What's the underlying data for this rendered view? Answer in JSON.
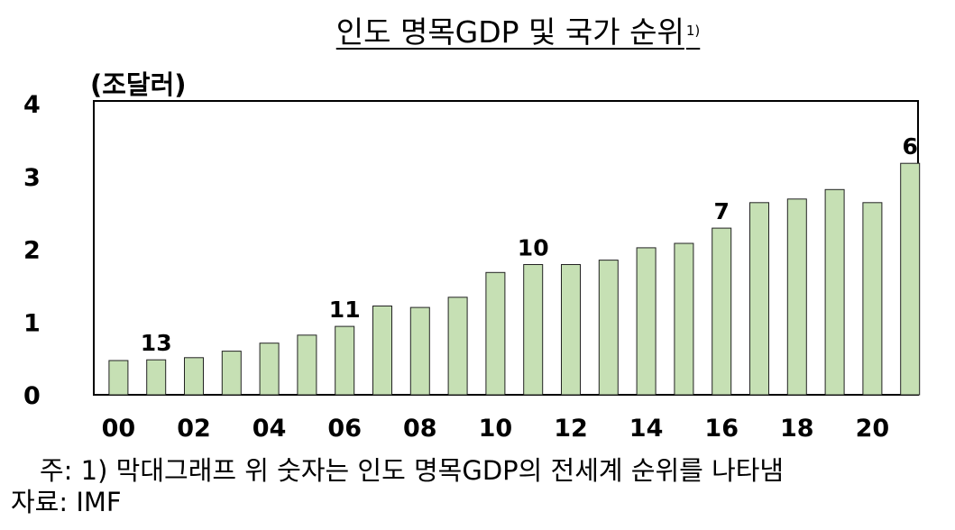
{
  "title": "인도 명목GDP 및 국가 순위",
  "title_footnote_mark": "1)",
  "unit_label": "(조달러)",
  "footnote": "주: 1) 막대그래프 위 숫자는 인도 명목GDP의 전세계 순위를 나타냄",
  "source": "자료: IMF",
  "colors": {
    "bar_fill": "#c6e0b4",
    "bar_stroke": "#222222",
    "axis": "#000000"
  },
  "chart_data": {
    "type": "bar",
    "ylim": [
      0,
      4
    ],
    "yticks": [
      "0",
      "1",
      "2",
      "3",
      "4"
    ],
    "xtick_labels": [
      "00",
      "02",
      "04",
      "06",
      "08",
      "10",
      "12",
      "14",
      "16",
      "18",
      "20"
    ],
    "grid": false,
    "legend": "none",
    "categories": [
      "00",
      "01",
      "02",
      "03",
      "04",
      "05",
      "06",
      "07",
      "08",
      "09",
      "10",
      "11",
      "12",
      "13",
      "14",
      "15",
      "16",
      "17",
      "18",
      "19",
      "20",
      "21"
    ],
    "values": [
      0.47,
      0.48,
      0.51,
      0.6,
      0.71,
      0.82,
      0.94,
      1.22,
      1.2,
      1.34,
      1.68,
      1.79,
      1.79,
      1.85,
      2.02,
      2.08,
      2.29,
      2.64,
      2.69,
      2.82,
      2.64,
      3.18
    ],
    "rank_labels": [
      {
        "index": 1,
        "label": "13"
      },
      {
        "index": 6,
        "label": "11"
      },
      {
        "index": 11,
        "label": "10"
      },
      {
        "index": 16,
        "label": "7"
      },
      {
        "index": 21,
        "label": "6"
      }
    ]
  }
}
